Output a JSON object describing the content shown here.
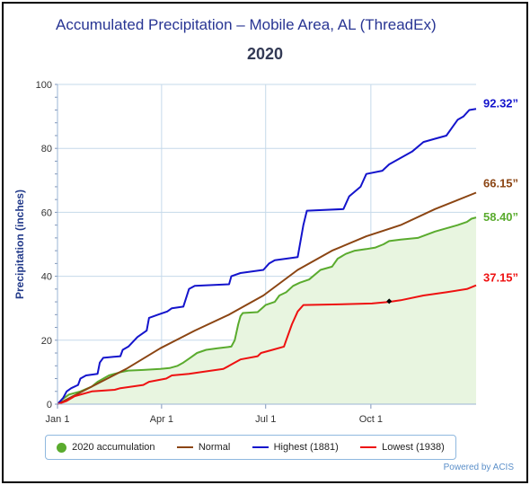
{
  "header": {
    "title": "Accumulated Precipitation – Mobile Area, AL (ThreadEx)",
    "subtitle": "2020"
  },
  "footer": {
    "credit": "Powered by ACIS"
  },
  "colors": {
    "accumulation": "#5aab2e",
    "accumulation_fill": "#e8f5e0",
    "normal": "#8b4513",
    "highest": "#1414cc",
    "lowest": "#ee1111",
    "grid": "#c5d9ea",
    "axis": "#223a8a"
  },
  "chart_data": {
    "type": "line",
    "ylabel": "Precipitation (inches)",
    "ylim": [
      0,
      100
    ],
    "xlim_days": [
      0,
      366
    ],
    "yticks": [
      "0",
      "20",
      "40",
      "60",
      "80",
      "100"
    ],
    "xticks": [
      {
        "label": "Jan 1",
        "day": 0
      },
      {
        "label": "Apr 1",
        "day": 91
      },
      {
        "label": "Jul 1",
        "day": 182
      },
      {
        "label": "Oct 1",
        "day": 274
      }
    ],
    "grid": true,
    "legend_position": "bottom",
    "series": [
      {
        "name": "2020 accumulation",
        "type": "area",
        "end_label": "58.40”",
        "points": [
          [
            0,
            0
          ],
          [
            4,
            1.5
          ],
          [
            10,
            3
          ],
          [
            20,
            4
          ],
          [
            30,
            5.5
          ],
          [
            35,
            7
          ],
          [
            45,
            9
          ],
          [
            55,
            10
          ],
          [
            62,
            10.5
          ],
          [
            75,
            10.7
          ],
          [
            90,
            11
          ],
          [
            98,
            11.3
          ],
          [
            105,
            12
          ],
          [
            110,
            13
          ],
          [
            116,
            14.5
          ],
          [
            122,
            16
          ],
          [
            130,
            17
          ],
          [
            140,
            17.5
          ],
          [
            152,
            18
          ],
          [
            155,
            20
          ],
          [
            158,
            25
          ],
          [
            160,
            27.5
          ],
          [
            162,
            28.5
          ],
          [
            175,
            28.8
          ],
          [
            182,
            31
          ],
          [
            190,
            32
          ],
          [
            194,
            34
          ],
          [
            200,
            35
          ],
          [
            206,
            37
          ],
          [
            212,
            38
          ],
          [
            220,
            39
          ],
          [
            230,
            42
          ],
          [
            240,
            43
          ],
          [
            245,
            45.5
          ],
          [
            252,
            47
          ],
          [
            260,
            48
          ],
          [
            270,
            48.5
          ],
          [
            278,
            49
          ],
          [
            285,
            50
          ],
          [
            290,
            51
          ],
          [
            300,
            51.5
          ],
          [
            315,
            52
          ],
          [
            330,
            54
          ],
          [
            340,
            55
          ],
          [
            350,
            56
          ],
          [
            358,
            57
          ],
          [
            362,
            58
          ],
          [
            366,
            58.4
          ]
        ]
      },
      {
        "name": "Normal",
        "type": "line",
        "end_label": "66.15”",
        "points": [
          [
            0,
            0
          ],
          [
            30,
            5.5
          ],
          [
            60,
            11
          ],
          [
            90,
            17.5
          ],
          [
            120,
            23
          ],
          [
            150,
            28
          ],
          [
            180,
            34
          ],
          [
            210,
            42
          ],
          [
            240,
            48
          ],
          [
            270,
            52.5
          ],
          [
            300,
            56
          ],
          [
            330,
            61
          ],
          [
            366,
            66.15
          ]
        ]
      },
      {
        "name": "Highest (1881)",
        "type": "line",
        "end_label": "92.32”",
        "points": [
          [
            0,
            0
          ],
          [
            5,
            2
          ],
          [
            8,
            4
          ],
          [
            12,
            5
          ],
          [
            18,
            6
          ],
          [
            20,
            8
          ],
          [
            25,
            9
          ],
          [
            35,
            9.5
          ],
          [
            37,
            13
          ],
          [
            40,
            14.5
          ],
          [
            55,
            15
          ],
          [
            57,
            17
          ],
          [
            62,
            18
          ],
          [
            70,
            21
          ],
          [
            78,
            23
          ],
          [
            80,
            27
          ],
          [
            88,
            28
          ],
          [
            96,
            29
          ],
          [
            100,
            30
          ],
          [
            110,
            30.5
          ],
          [
            115,
            36
          ],
          [
            120,
            37
          ],
          [
            150,
            37.5
          ],
          [
            152,
            40
          ],
          [
            160,
            41
          ],
          [
            180,
            42
          ],
          [
            185,
            44
          ],
          [
            190,
            45
          ],
          [
            210,
            46
          ],
          [
            215,
            56
          ],
          [
            218,
            60.5
          ],
          [
            250,
            61
          ],
          [
            255,
            65
          ],
          [
            265,
            68
          ],
          [
            270,
            72
          ],
          [
            284,
            73
          ],
          [
            290,
            75
          ],
          [
            310,
            79
          ],
          [
            320,
            82
          ],
          [
            330,
            83
          ],
          [
            340,
            84
          ],
          [
            346,
            87
          ],
          [
            350,
            89
          ],
          [
            355,
            90
          ],
          [
            360,
            92
          ],
          [
            366,
            92.32
          ]
        ]
      },
      {
        "name": "Lowest (1938)",
        "type": "line",
        "end_label": "37.15”",
        "points": [
          [
            0,
            0
          ],
          [
            8,
            1
          ],
          [
            15,
            2.5
          ],
          [
            30,
            4
          ],
          [
            50,
            4.5
          ],
          [
            55,
            5
          ],
          [
            75,
            6
          ],
          [
            80,
            7
          ],
          [
            95,
            8
          ],
          [
            100,
            9
          ],
          [
            115,
            9.5
          ],
          [
            125,
            10
          ],
          [
            145,
            11
          ],
          [
            150,
            12
          ],
          [
            155,
            13
          ],
          [
            160,
            14
          ],
          [
            175,
            15
          ],
          [
            178,
            16
          ],
          [
            188,
            17
          ],
          [
            198,
            18
          ],
          [
            200,
            20
          ],
          [
            205,
            25
          ],
          [
            210,
            29
          ],
          [
            215,
            31
          ],
          [
            245,
            31.2
          ],
          [
            275,
            31.5
          ],
          [
            290,
            32
          ],
          [
            300,
            32.5
          ],
          [
            320,
            34
          ],
          [
            340,
            35
          ],
          [
            358,
            36
          ],
          [
            366,
            37.15
          ]
        ]
      }
    ],
    "annotations": [
      {
        "series": "Lowest (1938)",
        "day": 290,
        "value": 32.2,
        "marker": "diamond"
      }
    ]
  }
}
